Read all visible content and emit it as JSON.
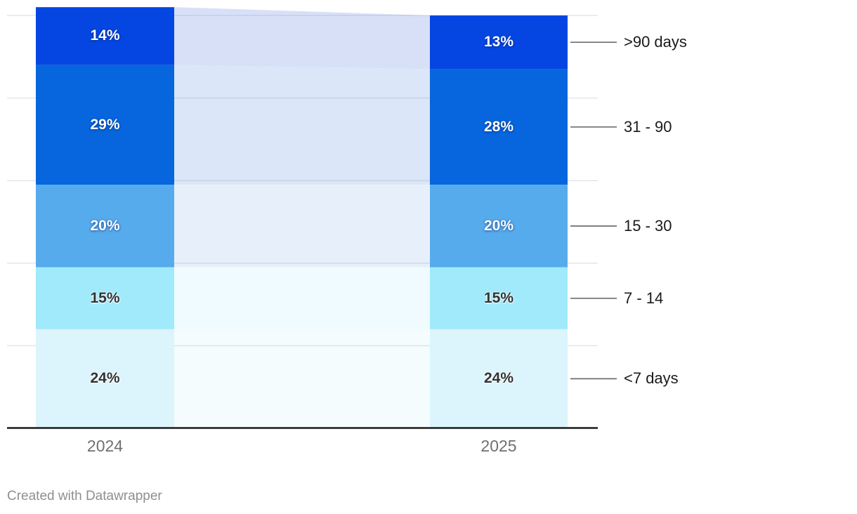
{
  "chart_data": {
    "type": "bar",
    "variant": "stacked-column-slope",
    "title": "",
    "xlabel": "",
    "ylabel": "",
    "categories": [
      "2024",
      "2025"
    ],
    "series": [
      {
        "name": ">90 days",
        "values": [
          14,
          13
        ],
        "color": "#0546e2",
        "faded_color": "#d8e0f8",
        "value_label_style": "light"
      },
      {
        "name": "31 - 90",
        "values": [
          29,
          28
        ],
        "color": "#0766dd",
        "faded_color": "#dbe6f8",
        "value_label_style": "light"
      },
      {
        "name": "15 - 30",
        "values": [
          20,
          20
        ],
        "color": "#56abec",
        "faded_color": "#e7f0fa",
        "value_label_style": "light"
      },
      {
        "name": "7 - 14",
        "values": [
          15,
          15
        ],
        "color": "#a0eafb",
        "faded_color": "#effbfe",
        "value_label_style": "dark"
      },
      {
        "name": "<7 days",
        "values": [
          24,
          24
        ],
        "color": "#dcf4fb",
        "faded_color": "#f5fcfe",
        "value_label_style": "dark"
      }
    ],
    "value_suffix": "%",
    "ylim": [
      0,
      100
    ],
    "grid": {
      "show": true,
      "interval": 20
    },
    "legend_position": "right-labels",
    "colors": {
      "axis_line": "#1a1a1a",
      "gridline": "#8a95a1",
      "connector_line": "#6e6e6e",
      "category_label": "#6f6f6f",
      "series_label": "#1a1a1a"
    }
  },
  "footer": {
    "credit": "Created with Datawrapper"
  }
}
